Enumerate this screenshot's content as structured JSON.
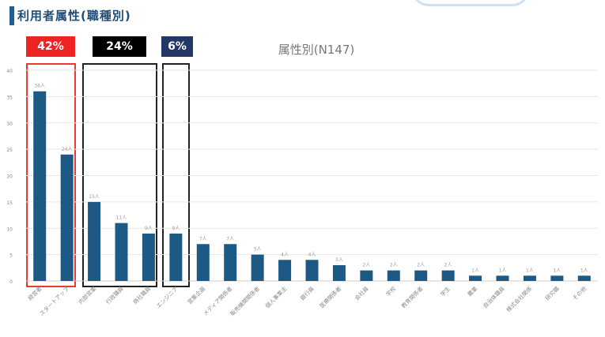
{
  "header": {
    "title": "利用者属性(職種別)"
  },
  "badges": [
    {
      "label": "42%",
      "color": "#ee2323"
    },
    {
      "label": "24%",
      "color": "#000000"
    },
    {
      "label": "6%",
      "color": "#223765"
    }
  ],
  "colors": {
    "bar": "#1c5a85",
    "grid": "#e6e6e6",
    "box_red": "#ee3a2a",
    "box_dark": "#222222"
  },
  "chart_data": {
    "type": "bar",
    "title": "属性別(N147)",
    "xlabel": "",
    "ylabel": "",
    "ylim": [
      0,
      40
    ],
    "yticks": [
      0,
      5,
      10,
      15,
      20,
      25,
      30,
      35,
      40
    ],
    "grid": true,
    "categories": [
      "経営者",
      "スタートアップ",
      "内部営業",
      "行政職員",
      "商社職員",
      "エンジニア",
      "営業企画",
      "メディア関係者",
      "販売機関関係者",
      "個人事業主",
      "銀行員",
      "医療関係者",
      "会社員",
      "学校",
      "教育関係者",
      "学生",
      "農業",
      "自治体職員",
      "株式会社関係",
      "研究職",
      "その他"
    ],
    "values": [
      36,
      24,
      15,
      11,
      9,
      9,
      7,
      7,
      5,
      4,
      4,
      3,
      2,
      2,
      2,
      2,
      1,
      1,
      1,
      1,
      1
    ],
    "data_labels": [
      "36人",
      "24人",
      "15人",
      "11人",
      "9人",
      "9人",
      "7人",
      "7人",
      "5人",
      "4人",
      "4人",
      "3人",
      "2人",
      "2人",
      "2人",
      "2人",
      "1人",
      "1人",
      "1人",
      "1人",
      "1人"
    ],
    "groups": [
      {
        "label": "42%",
        "start": 0,
        "end": 1
      },
      {
        "label": "24%",
        "start": 2,
        "end": 4
      },
      {
        "label": "6%",
        "start": 5,
        "end": 5
      }
    ]
  }
}
